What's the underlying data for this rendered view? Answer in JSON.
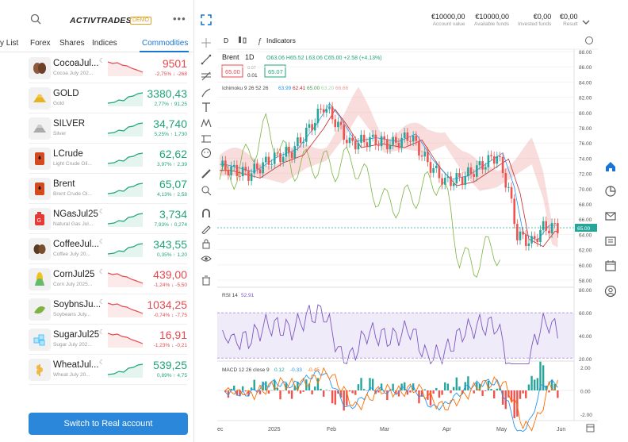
{
  "header": {
    "brand": "ACTIVTRADES",
    "badge": "DEMO",
    "menu": "•••"
  },
  "tabs": [
    "y List",
    "Forex",
    "Shares",
    "Indices",
    "Commodities"
  ],
  "instruments": [
    {
      "name": "CocoaJul...",
      "sub": "Cocoa July 202...",
      "price_main": "9",
      "price_big": "501",
      "change": "-2,75% ↓ -268",
      "dir": "down",
      "icon": "cocoa-icon"
    },
    {
      "name": "GOLD",
      "sub": "Gold",
      "price_main": "3",
      "price_big": "380,43",
      "change": "2,77% ↑ 91,25",
      "dir": "up",
      "icon": "gold-bars-icon"
    },
    {
      "name": "SILVER",
      "sub": "Silver",
      "price_main": "34,",
      "price_big": "740",
      "change": "5,25% ↑ 1,730",
      "dir": "up",
      "icon": "silver-bars-icon"
    },
    {
      "name": "LCrude",
      "sub": "Light Crude Oil...",
      "price_main": "62,",
      "price_big": "62",
      "change": "3,97% ↑ 2,39",
      "dir": "up",
      "icon": "oil-barrel-icon"
    },
    {
      "name": "Brent",
      "sub": "Brent Crude Oi...",
      "price_main": "65,",
      "price_big": "07",
      "change": "4,13% ↑ 2,58",
      "dir": "up",
      "icon": "oil-barrel-icon"
    },
    {
      "name": "NGasJul25",
      "sub": "Natural Gas Jul...",
      "price_main": "3,",
      "price_big": "734",
      "change": "7,93% ↑ 0,274",
      "dir": "up",
      "icon": "gas-can-icon"
    },
    {
      "name": "CoffeeJul...",
      "sub": "Coffee July 20...",
      "price_main": "343,",
      "price_big": "55",
      "change": "0,35% ↑ 1,20",
      "dir": "up",
      "icon": "coffee-bean-icon"
    },
    {
      "name": "CornJul25",
      "sub": "Corn July 2025...",
      "price_main": "439,",
      "price_big": "00",
      "change": "-1,24% ↓ -5,50",
      "dir": "down",
      "icon": "corn-icon"
    },
    {
      "name": "SoybnsJu...",
      "sub": "Soybeans July...",
      "price_main": "1034,",
      "price_big": "25",
      "change": "-0,74% ↓ -7,75",
      "dir": "down",
      "icon": "soybean-icon"
    },
    {
      "name": "SugarJul25",
      "sub": "Sugar July 202...",
      "price_main": "16,",
      "price_big": "91",
      "change": "-1,23% ↓ -0,21",
      "dir": "down",
      "icon": "sugar-icon"
    },
    {
      "name": "WheatJul...",
      "sub": "Wheat July 20...",
      "price_main": "539,",
      "price_big": "25",
      "change": "0,89% ↑ 4,75",
      "dir": "up",
      "icon": "wheat-icon"
    }
  ],
  "real_button": "Switch to Real account",
  "account": [
    {
      "value": "€10000,00",
      "label": "Account value"
    },
    {
      "value": "€10000,00",
      "label": "Available funds"
    },
    {
      "value": "€0,00",
      "label": "Invested funds"
    },
    {
      "value": "€0,00",
      "label": "Result"
    }
  ],
  "chart": {
    "interval": "D",
    "indicators_label": "Indicators",
    "symbol": "Brent",
    "tf": "1D",
    "ohlc": "O63.06 H65.52 L63.06 C65.00 +2.58 (+4.13%)",
    "sell": "65.00",
    "spread_top": "0.07",
    "spread": "0.01",
    "buy": "65.07",
    "ichimoku_label": "Ichimoku 9 26 52 26",
    "ichimoku_vals": [
      "63.99",
      "62.41",
      "65.00",
      "63.20",
      "66.66"
    ],
    "price_tag": "65.00",
    "rsi_label": "RSI 14",
    "rsi_val": "52.91",
    "macd_label": "MACD 12 26 close 9",
    "macd_vals": [
      "0.12",
      "-0.33",
      "-0.45"
    ],
    "x_labels": [
      "ec",
      "2025",
      "Feb",
      "Mar",
      "Apr",
      "May",
      "Jun"
    ],
    "price_axis": [
      "88.00",
      "86.00",
      "84.00",
      "82.00",
      "80.00",
      "78.00",
      "76.00",
      "74.00",
      "72.00",
      "70.00",
      "68.00",
      "66.00",
      "64.00",
      "62.00",
      "60.00",
      "58.00"
    ],
    "rsi_axis": [
      "80.00",
      "60.00",
      "40.00",
      "20.00"
    ],
    "macd_axis": [
      "2.00",
      "0.00",
      "-2.00"
    ]
  },
  "chart_data": {
    "type": "line",
    "title": "Brent 1D",
    "series": [
      {
        "name": "Brent close",
        "x": [
          "Dec",
          "2025",
          "Feb",
          "Mar",
          "Apr",
          "May",
          "Jun"
        ],
        "values": [
          73.5,
          76.0,
          76.5,
          73.0,
          72.8,
          62.5,
          65.0
        ]
      }
    ],
    "ylim": [
      58,
      88
    ],
    "rsi": {
      "value": 52.91,
      "ylim": [
        20,
        80
      ]
    },
    "macd": {
      "values": [
        0.12,
        -0.33,
        -0.45
      ],
      "ylim": [
        -2,
        2
      ]
    }
  },
  "colors": {
    "accent": "#1976d2",
    "up": "#1fa47a",
    "down": "#e5484d",
    "button": "#2b87d9"
  }
}
